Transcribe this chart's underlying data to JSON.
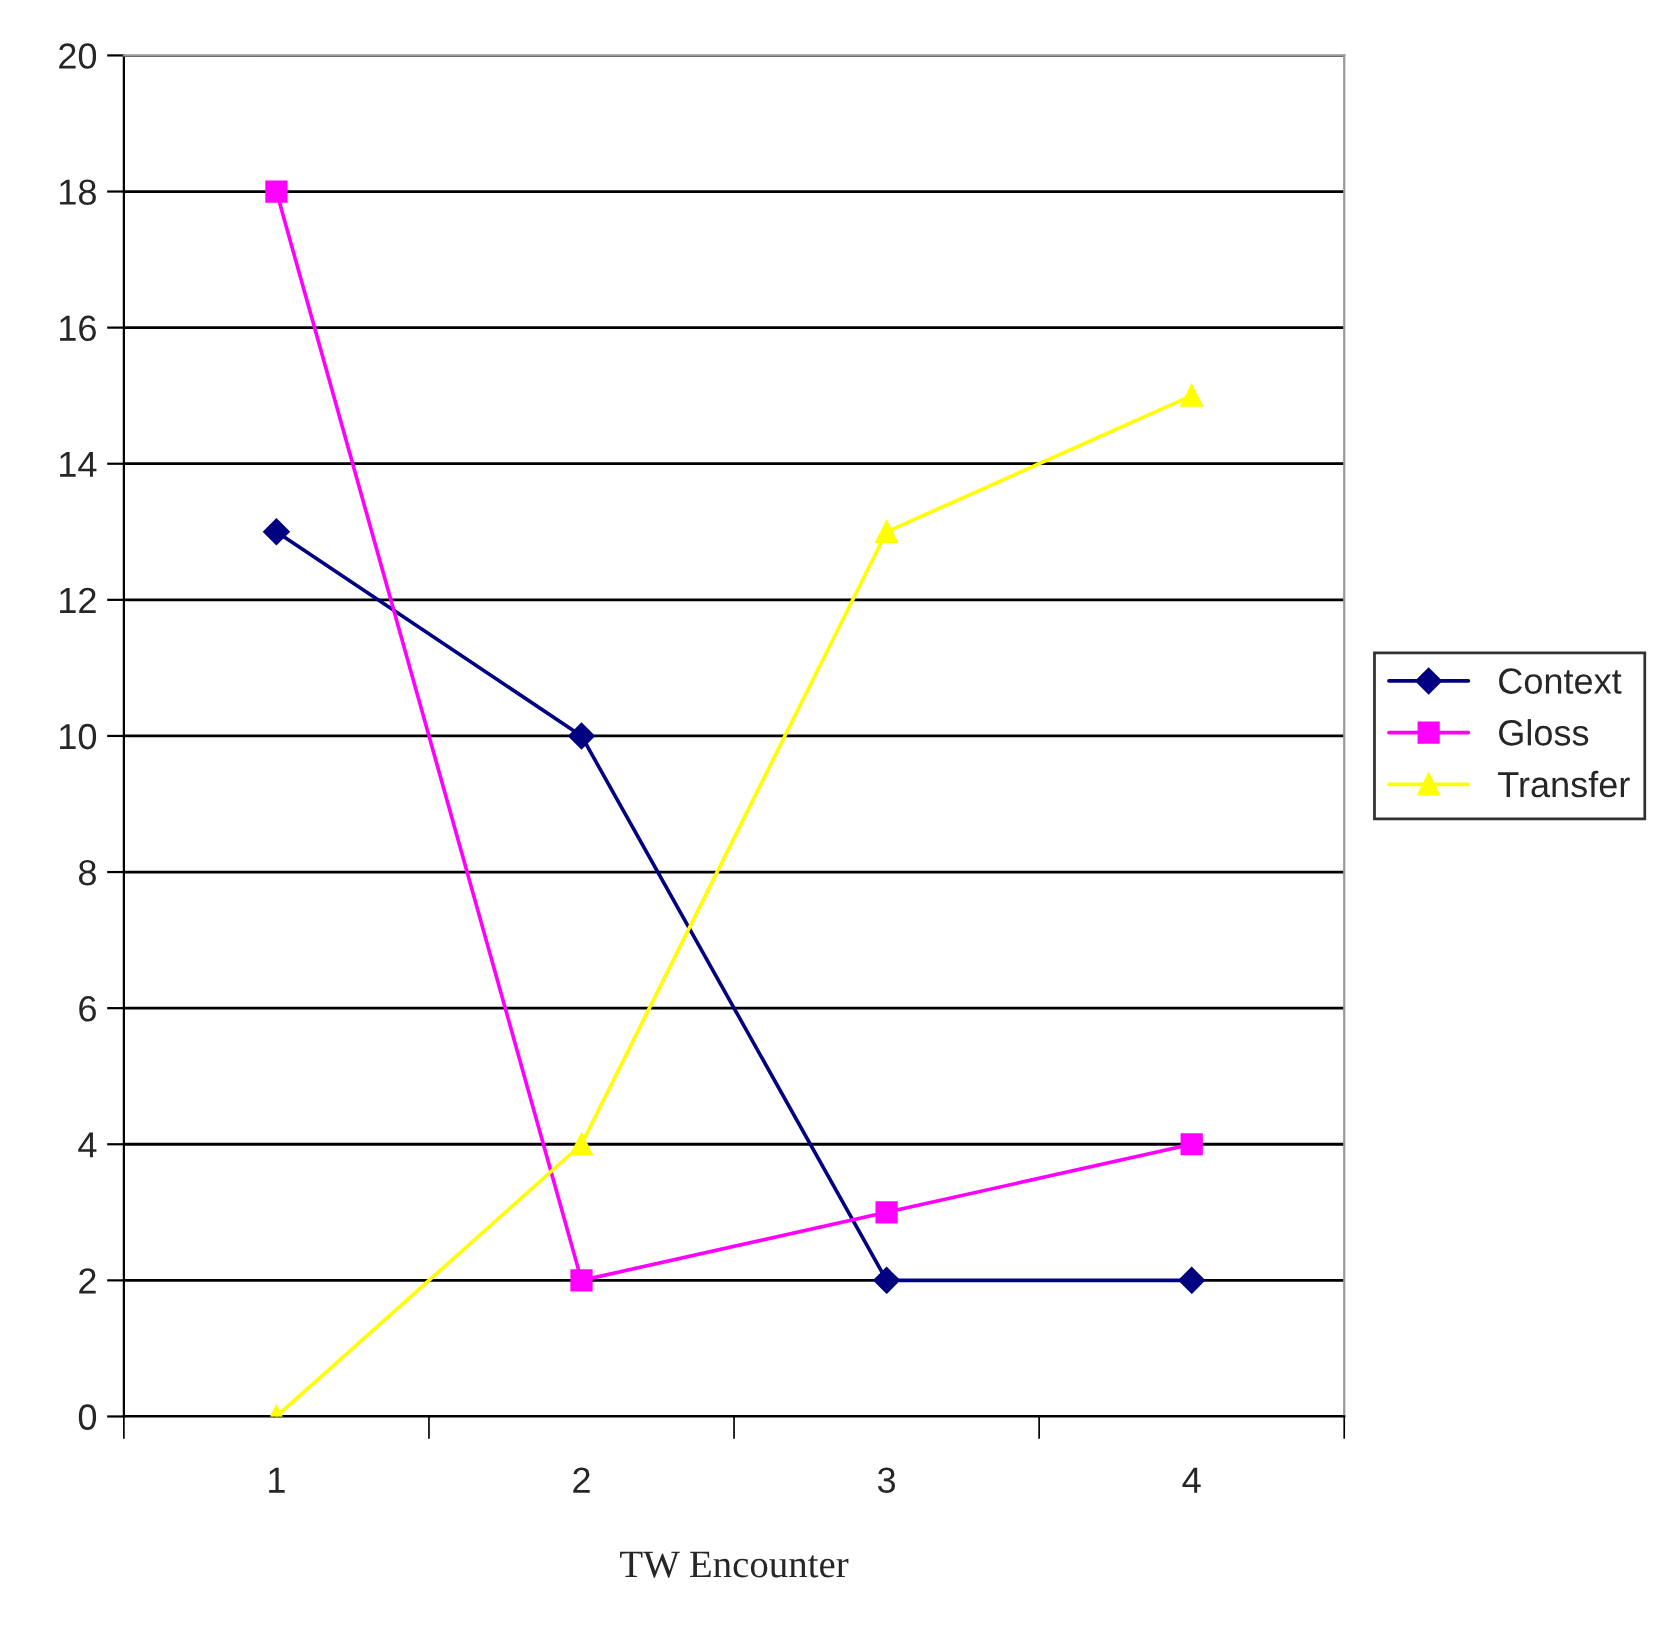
{
  "chart_data": {
    "type": "line",
    "xlabel": "TW Encounter",
    "categories": [
      "1",
      "2",
      "3",
      "4"
    ],
    "series": [
      {
        "name": "Context",
        "color": "#000080",
        "marker": "diamond",
        "values": [
          13,
          10,
          2,
          2
        ]
      },
      {
        "name": "Gloss",
        "color": "#ff00ff",
        "marker": "square",
        "values": [
          18,
          2,
          3,
          4
        ]
      },
      {
        "name": "Transfer",
        "color": "#ffff00",
        "marker": "triangle",
        "values": [
          0,
          4,
          13,
          15
        ]
      }
    ],
    "ylim": [
      0,
      20
    ],
    "yticks": [
      0,
      2,
      4,
      6,
      8,
      10,
      12,
      14,
      16,
      18,
      20
    ],
    "grid": "y",
    "legend": "right",
    "line_style": "solid"
  }
}
